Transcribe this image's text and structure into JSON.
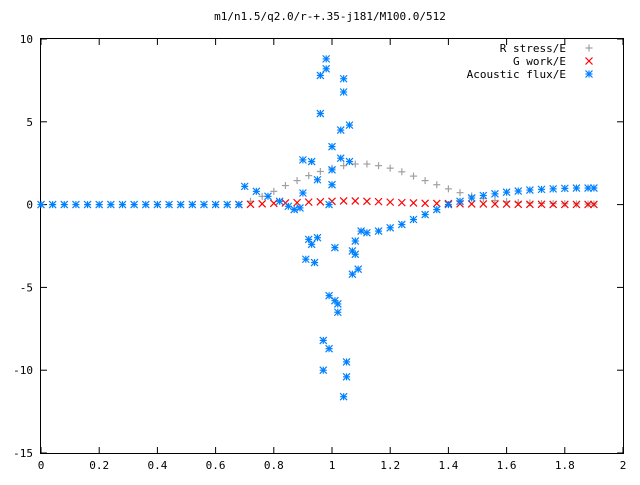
{
  "chart_data": {
    "type": "scatter",
    "title": "m1/n1.5/q2.0/r-+.35-j181/M100.0/512",
    "xlabel": "",
    "ylabel": "",
    "xlim": [
      0,
      2
    ],
    "ylim": [
      -15,
      10
    ],
    "grid": false,
    "legend_position": "top-right",
    "x_ticks": [
      0,
      0.2,
      0.4,
      0.6,
      0.8,
      1,
      1.2,
      1.4,
      1.6,
      1.8,
      2
    ],
    "x_tick_labels": [
      "0",
      "0.2",
      "0.4",
      "0.6",
      "0.8",
      "1",
      "1.2",
      "1.4",
      "1.6",
      "1.8",
      "2"
    ],
    "y_ticks": [
      -15,
      -10,
      -5,
      0,
      5,
      10
    ],
    "y_tick_labels": [
      "-15",
      "-10",
      "-5",
      "0",
      "5",
      "10"
    ],
    "series": [
      {
        "name": "R stress/E",
        "color": "#a0a0a0",
        "marker": "plus",
        "x": [
          0.68,
          0.72,
          0.76,
          0.8,
          0.84,
          0.88,
          0.92,
          0.96,
          1.0,
          1.04,
          1.08,
          1.12,
          1.16,
          1.2,
          1.24,
          1.28,
          1.32,
          1.36,
          1.4,
          1.44,
          1.48,
          1.52,
          1.56,
          1.6,
          1.64,
          1.68,
          1.72,
          1.76,
          1.8,
          1.84,
          1.88,
          1.9
        ],
        "y": [
          0.0,
          0.2,
          0.5,
          0.8,
          1.15,
          1.45,
          1.75,
          2.0,
          2.2,
          2.35,
          2.45,
          2.45,
          2.35,
          2.2,
          1.98,
          1.72,
          1.45,
          1.2,
          0.95,
          0.72,
          0.52,
          0.36,
          0.25,
          0.18,
          0.13,
          0.1,
          0.07,
          0.06,
          0.05,
          0.04,
          0.03,
          0.03
        ]
      },
      {
        "name": "G work/E",
        "color": "#ff0000",
        "marker": "cross",
        "x": [
          0.68,
          0.72,
          0.76,
          0.8,
          0.84,
          0.88,
          0.92,
          0.96,
          1.0,
          1.04,
          1.08,
          1.12,
          1.16,
          1.2,
          1.24,
          1.28,
          1.32,
          1.36,
          1.4,
          1.44,
          1.48,
          1.52,
          1.56,
          1.6,
          1.64,
          1.68,
          1.72,
          1.76,
          1.8,
          1.84,
          1.88,
          1.9
        ],
        "y": [
          0.0,
          0.02,
          0.05,
          0.08,
          0.1,
          0.12,
          0.15,
          0.17,
          0.2,
          0.22,
          0.22,
          0.2,
          0.18,
          0.15,
          0.12,
          0.1,
          0.08,
          0.07,
          0.06,
          0.05,
          0.04,
          0.04,
          0.03,
          0.03,
          0.02,
          0.02,
          0.02,
          0.01,
          0.01,
          0.01,
          0.01,
          0.01
        ]
      },
      {
        "name": "Acoustic flux/E",
        "color": "#0080ff",
        "marker": "star",
        "x": [
          0.0,
          0.04,
          0.08,
          0.12,
          0.16,
          0.2,
          0.24,
          0.28,
          0.32,
          0.36,
          0.4,
          0.44,
          0.48,
          0.52,
          0.56,
          0.6,
          0.64,
          0.68,
          0.7,
          0.74,
          0.78,
          0.82,
          0.85,
          0.87,
          0.89,
          0.9,
          0.92,
          0.93,
          0.94,
          0.95,
          0.96,
          0.97,
          0.98,
          0.99,
          1.0,
          1.01,
          1.02,
          1.03,
          1.04,
          1.05,
          1.06,
          1.07,
          1.08,
          1.09,
          1.1,
          1.12,
          1.16,
          1.2,
          1.24,
          1.28,
          1.32,
          1.36,
          1.4,
          1.44,
          1.48,
          1.52,
          1.56,
          1.6,
          1.64,
          1.68,
          1.72,
          1.76,
          1.8,
          1.84,
          1.88,
          1.9,
          0.96,
          0.97,
          0.98,
          0.99,
          1.0,
          1.02,
          1.04,
          1.05,
          0.9,
          0.91,
          0.93,
          0.95,
          0.99,
          1.0,
          1.01,
          1.03,
          1.04,
          1.06,
          1.07,
          1.08
        ],
        "y": [
          0.0,
          0.0,
          0.0,
          0.0,
          0.0,
          0.0,
          0.0,
          0.0,
          0.0,
          0.0,
          0.0,
          0.0,
          0.0,
          0.0,
          0.0,
          0.0,
          0.0,
          0.0,
          1.1,
          0.8,
          0.5,
          0.2,
          -0.1,
          -0.3,
          -0.2,
          0.7,
          -2.1,
          2.6,
          -3.5,
          -2.0,
          5.5,
          -8.2,
          8.8,
          -5.5,
          2.1,
          -5.8,
          -6.5,
          4.5,
          7.6,
          -9.5,
          4.8,
          -4.2,
          -2.2,
          -3.9,
          -1.6,
          -1.7,
          -1.6,
          -1.4,
          -1.2,
          -0.9,
          -0.6,
          -0.3,
          0.0,
          0.2,
          0.4,
          0.55,
          0.65,
          0.75,
          0.82,
          0.88,
          0.92,
          0.95,
          0.98,
          1.0,
          1.0,
          1.0,
          7.8,
          -10.0,
          8.2,
          -8.7,
          1.2,
          -6.0,
          6.8,
          -10.4,
          2.7,
          -3.3,
          -2.4,
          1.5,
          0.0,
          3.5,
          -2.6,
          2.8,
          -11.6,
          2.6,
          -2.8,
          -3.0
        ]
      }
    ]
  }
}
